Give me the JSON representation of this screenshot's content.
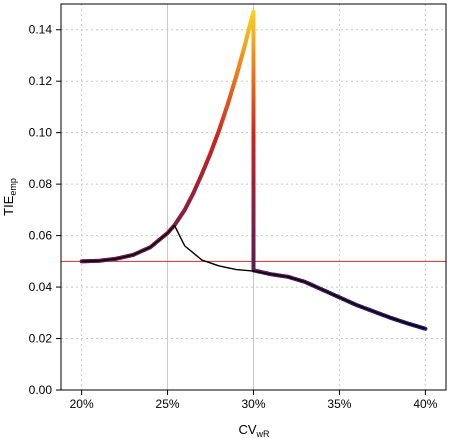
{
  "chart_data": {
    "type": "line",
    "xlabel": "CV",
    "xlabel_sub": "wR",
    "ylabel": "TIE",
    "ylabel_sub": "emp",
    "xlim": [
      18.8,
      41.2
    ],
    "ylim": [
      0,
      0.15
    ],
    "x_ticks": [
      20,
      25,
      30,
      35,
      40
    ],
    "x_tick_labels": [
      "20%",
      "25%",
      "30%",
      "35%",
      "40%"
    ],
    "y_ticks": [
      0.0,
      0.02,
      0.04,
      0.06,
      0.08,
      0.1,
      0.12,
      0.14
    ],
    "y_tick_labels": [
      "0.00",
      "0.02",
      "0.04",
      "0.06",
      "0.08",
      "0.10",
      "0.12",
      "0.14"
    ],
    "grid": true,
    "reference_line": {
      "y": 0.05,
      "color": "#cc3333"
    },
    "vertical_gridline_emphasis": [
      25,
      30
    ],
    "colors": {
      "low": "#1a1a6e",
      "mid": "#cc2222",
      "orange": "#f07a18",
      "high": "#f8e020",
      "reference": "#cc3333",
      "black_line": "#000000",
      "grid": "#c8c8c8"
    },
    "series": [
      {
        "points": [
          [
            20.0,
            0.05
          ],
          [
            21.0,
            0.0502
          ],
          [
            22.0,
            0.051
          ],
          [
            23.0,
            0.0525
          ],
          [
            24.0,
            0.0555
          ],
          [
            25.0,
            0.061
          ],
          [
            25.4,
            0.064
          ],
          [
            26.0,
            0.07
          ],
          [
            26.5,
            0.0765
          ],
          [
            27.0,
            0.084
          ],
          [
            27.5,
            0.092
          ],
          [
            28.0,
            0.101
          ],
          [
            28.5,
            0.111
          ],
          [
            29.0,
            0.122
          ],
          [
            29.5,
            0.134
          ],
          [
            29.8,
            0.142
          ],
          [
            30.0,
            0.147
          ],
          [
            30.0,
            0.048
          ],
          [
            30.0,
            0.0465
          ],
          [
            31.0,
            0.045
          ],
          [
            32.0,
            0.044
          ],
          [
            33.0,
            0.042
          ],
          [
            34.0,
            0.039
          ],
          [
            35.0,
            0.036
          ],
          [
            36.0,
            0.033
          ],
          [
            37.0,
            0.0305
          ],
          [
            38.0,
            0.028
          ],
          [
            39.0,
            0.0258
          ],
          [
            40.0,
            0.0238
          ]
        ]
      },
      {
        "points": [
          [
            20.0,
            0.05
          ],
          [
            21.0,
            0.0502
          ],
          [
            22.0,
            0.051
          ],
          [
            23.0,
            0.0525
          ],
          [
            24.0,
            0.0555
          ],
          [
            25.0,
            0.061
          ],
          [
            25.4,
            0.064
          ],
          [
            26.0,
            0.056
          ],
          [
            27.0,
            0.0505
          ],
          [
            28.0,
            0.0482
          ],
          [
            29.0,
            0.0468
          ],
          [
            30.0,
            0.0462
          ],
          [
            31.0,
            0.045
          ],
          [
            32.0,
            0.044
          ],
          [
            33.0,
            0.042
          ],
          [
            34.0,
            0.039
          ],
          [
            35.0,
            0.036
          ],
          [
            36.0,
            0.033
          ],
          [
            37.0,
            0.0305
          ],
          [
            38.0,
            0.028
          ],
          [
            39.0,
            0.0258
          ],
          [
            40.0,
            0.0238
          ]
        ]
      }
    ]
  }
}
